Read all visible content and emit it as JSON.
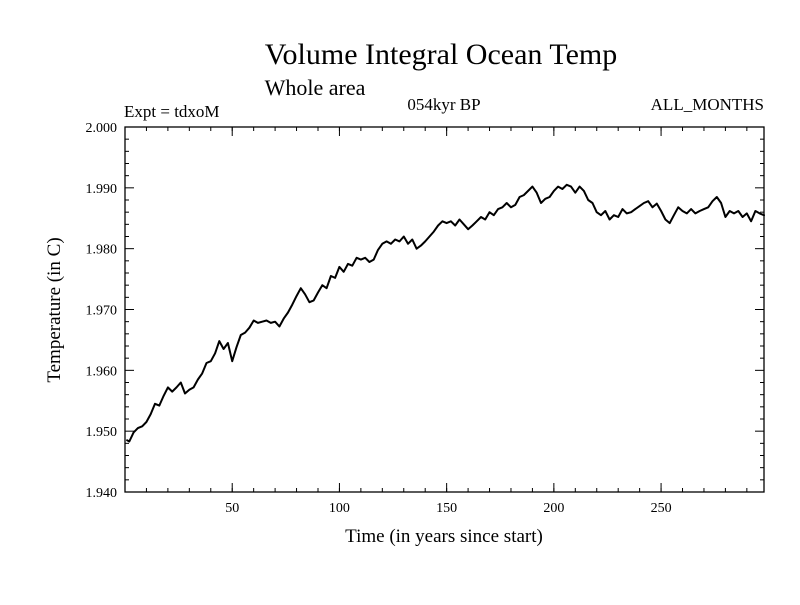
{
  "chart_data": {
    "type": "line",
    "title": "Volume Integral Ocean Temp",
    "subtitle": "Whole area",
    "experiment": "Expt = tdxoM",
    "period": "054kyr BP",
    "months": "ALL_MONTHS",
    "xlabel": "Time (in years since start)",
    "ylabel": "Temperature (in C)",
    "xlim": [
      0,
      298
    ],
    "ylim": [
      1.94,
      2.0
    ],
    "x_ticks": [
      50,
      100,
      150,
      200,
      250
    ],
    "x_tick_labels": [
      "50",
      "100",
      "150",
      "200",
      "250"
    ],
    "y_ticks": [
      1.94,
      1.95,
      1.96,
      1.97,
      1.98,
      1.99,
      2.0
    ],
    "y_tick_labels": [
      "1.940",
      "1.950",
      "1.960",
      "1.970",
      "1.980",
      "1.990",
      "2.000"
    ],
    "series": [
      {
        "color": "#000000",
        "x": [
          1,
          2,
          4,
          6,
          8,
          10,
          12,
          14,
          16,
          18,
          20,
          22,
          24,
          26,
          28,
          30,
          32,
          34,
          36,
          38,
          40,
          42,
          44,
          46,
          48,
          50,
          52,
          54,
          56,
          58,
          60,
          62,
          64,
          66,
          68,
          70,
          72,
          74,
          76,
          78,
          80,
          82,
          84,
          86,
          88,
          90,
          92,
          94,
          96,
          98,
          100,
          102,
          104,
          106,
          108,
          110,
          112,
          114,
          116,
          118,
          120,
          122,
          124,
          126,
          128,
          130,
          132,
          134,
          136,
          138,
          140,
          142,
          144,
          146,
          148,
          150,
          152,
          154,
          156,
          158,
          160,
          162,
          164,
          166,
          168,
          170,
          172,
          174,
          176,
          178,
          180,
          182,
          184,
          186,
          188,
          190,
          192,
          194,
          196,
          198,
          200,
          202,
          204,
          206,
          208,
          210,
          212,
          214,
          216,
          218,
          220,
          222,
          224,
          226,
          228,
          230,
          232,
          234,
          236,
          238,
          240,
          242,
          244,
          246,
          248,
          250,
          252,
          254,
          256,
          258,
          260,
          262,
          264,
          266,
          268,
          270,
          272,
          274,
          276,
          278,
          280,
          282,
          284,
          286,
          288,
          290,
          292,
          294,
          296,
          298
        ],
        "values": [
          1.9485,
          1.9483,
          1.9498,
          1.9505,
          1.9508,
          1.9515,
          1.9528,
          1.9545,
          1.9542,
          1.9558,
          1.9572,
          1.9565,
          1.9572,
          1.958,
          1.9562,
          1.9568,
          1.9572,
          1.9585,
          1.9595,
          1.9612,
          1.9615,
          1.9628,
          1.9648,
          1.9635,
          1.9645,
          1.9615,
          1.9638,
          1.9658,
          1.9662,
          1.967,
          1.9682,
          1.9678,
          1.968,
          1.9682,
          1.9678,
          1.968,
          1.9672,
          1.9685,
          1.9695,
          1.9708,
          1.9722,
          1.9735,
          1.9725,
          1.9712,
          1.9715,
          1.9728,
          1.974,
          1.9735,
          1.9755,
          1.9752,
          1.977,
          1.9762,
          1.9775,
          1.9772,
          1.9785,
          1.9782,
          1.9785,
          1.9778,
          1.9782,
          1.9798,
          1.9808,
          1.9812,
          1.9808,
          1.9815,
          1.9812,
          1.982,
          1.9808,
          1.9815,
          1.98,
          1.9805,
          1.9812,
          1.982,
          1.9828,
          1.9838,
          1.9845,
          1.9842,
          1.9845,
          1.9838,
          1.9848,
          1.984,
          1.9832,
          1.9838,
          1.9845,
          1.9852,
          1.9848,
          1.986,
          1.9855,
          1.9865,
          1.9868,
          1.9875,
          1.9868,
          1.9872,
          1.9885,
          1.9888,
          1.9895,
          1.9902,
          1.9892,
          1.9875,
          1.9882,
          1.9885,
          1.9895,
          1.9902,
          1.9898,
          1.9905,
          1.9902,
          1.9892,
          1.9902,
          1.9895,
          1.988,
          1.9875,
          1.986,
          1.9855,
          1.9862,
          1.9848,
          1.9855,
          1.9852,
          1.9865,
          1.9858,
          1.986,
          1.9865,
          1.987,
          1.9875,
          1.9878,
          1.9868,
          1.9874,
          1.9862,
          1.9848,
          1.9842,
          1.9855,
          1.9868,
          1.9862,
          1.9858,
          1.9865,
          1.9858,
          1.9862,
          1.9865,
          1.9868,
          1.9878,
          1.9885,
          1.9875,
          1.9852,
          1.9862,
          1.9858,
          1.9862,
          1.9852,
          1.9858,
          1.9845,
          1.9862,
          1.9858,
          1.9855
        ]
      }
    ],
    "grid": false,
    "legend": "none"
  }
}
